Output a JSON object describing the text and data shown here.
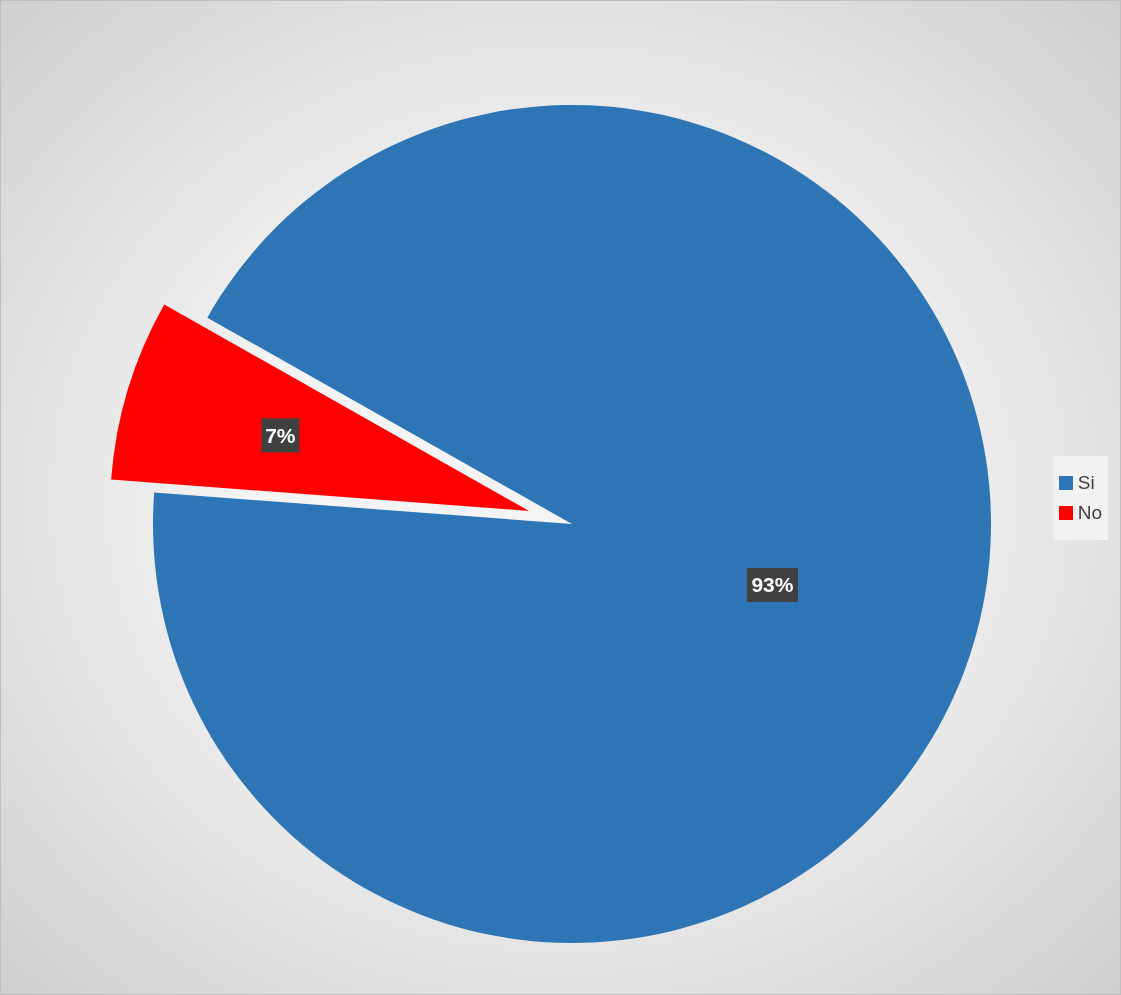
{
  "chart_data": {
    "type": "pie",
    "categories": [
      "Si",
      "No"
    ],
    "values": [
      93,
      7
    ],
    "colors": [
      "#2e75b6",
      "#ff0000"
    ],
    "value_labels": [
      "93%",
      "7%"
    ],
    "legend": "right"
  }
}
